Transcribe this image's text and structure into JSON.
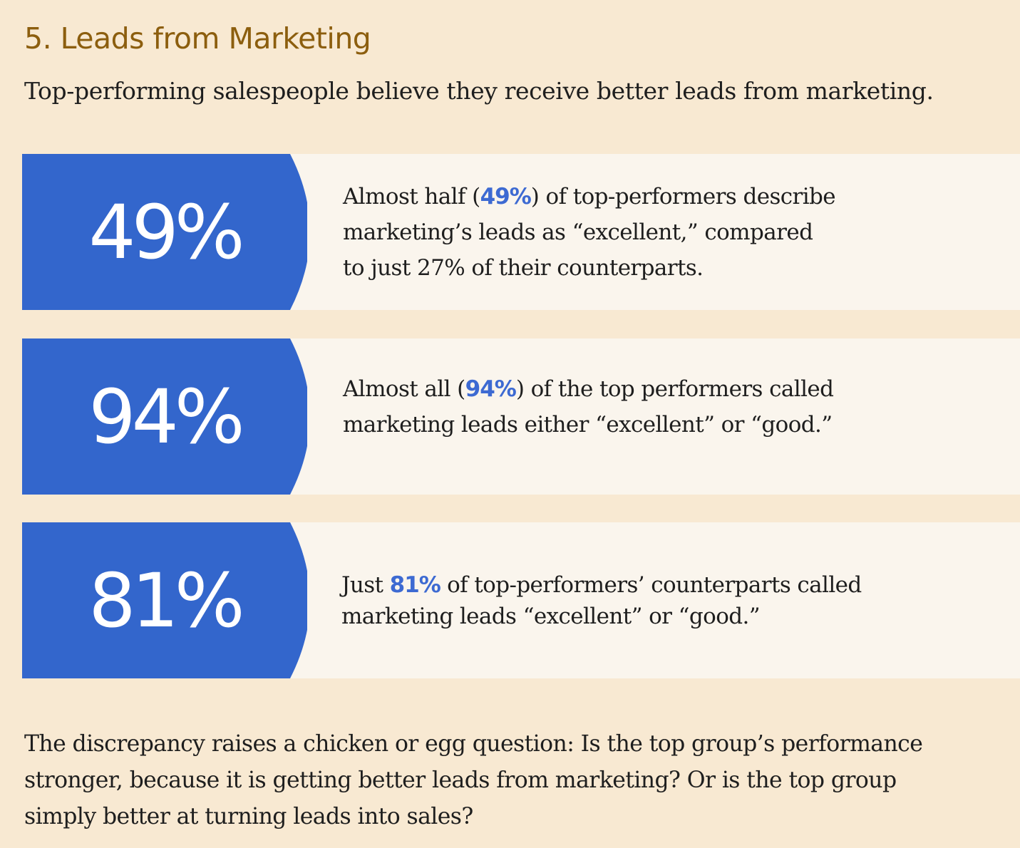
{
  "section": {
    "title": "5. Leads from Marketing",
    "subtitle": "Top-performing salespeople believe they receive better leads from marketing."
  },
  "colors": {
    "background": "#f8e9d2",
    "panel": "#faf5ed",
    "accent_blue": "#3366cc",
    "highlight_blue": "#3d6ad2",
    "title_brown": "#8c5e0e",
    "text": "#1e1e1e"
  },
  "stats": [
    {
      "value": "49%",
      "lines": [
        [
          "Almost half (",
          "49%",
          ") of top-performers describe"
        ],
        [
          "marketing’s leads  as “excellent,” compared",
          "",
          ""
        ],
        [
          "to just 27% of their counterparts.",
          "",
          ""
        ]
      ]
    },
    {
      "value": "94%",
      "lines": [
        [
          "Almost all (",
          "94%",
          ") of the top performers called"
        ],
        [
          "marketing leads either “excellent” or “good.”",
          "",
          ""
        ]
      ]
    },
    {
      "value": "81%",
      "lines": [
        [
          "Just ",
          "81%",
          " of top-performers’ counterparts called"
        ],
        [
          "marketing leads “excellent” or “good.”",
          "",
          ""
        ]
      ]
    }
  ],
  "closing": {
    "lines": [
      "The discrepancy raises a chicken or egg question: Is the top group’s performance",
      "stronger, because it is getting better leads from marketing? Or is the top group",
      "simply better at turning leads into sales?"
    ]
  }
}
